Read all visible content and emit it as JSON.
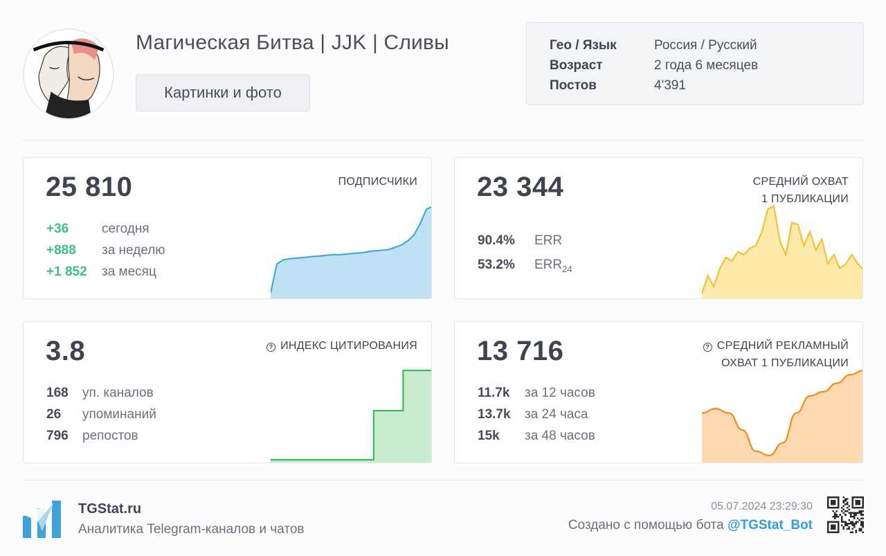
{
  "channel": {
    "title": "Магическая Битва | JJK | Сливы",
    "category": "Картинки и фото"
  },
  "info": [
    {
      "key": "Гео / Язык",
      "value": "Россия / Русский"
    },
    {
      "key": "Возраст",
      "value": "2 года 6 месяцев"
    },
    {
      "key": "Постов",
      "value": "4'391"
    }
  ],
  "cards": {
    "subscribers": {
      "value": "25 810",
      "label": "ПОДПИСЧИКИ",
      "stats": [
        {
          "num": "+36",
          "text": "сегодня"
        },
        {
          "num": "+888",
          "text": "за неделю"
        },
        {
          "num": "+1 852",
          "text": "за месяц"
        }
      ]
    },
    "reach": {
      "value": "23 344",
      "label_line1": "СРЕДНИЙ ОХВАТ",
      "label_line2": "1 ПУБЛИКАЦИИ",
      "stats": [
        {
          "num": "90.4%",
          "text": "ERR",
          "sub": ""
        },
        {
          "num": "53.2%",
          "text": "ERR",
          "sub": "24"
        }
      ]
    },
    "citation": {
      "value": "3.8",
      "label": "ИНДЕКС ЦИТИРОВАНИЯ",
      "stats": [
        {
          "num": "168",
          "text": "уп. каналов"
        },
        {
          "num": "26",
          "text": "упоминаний"
        },
        {
          "num": "796",
          "text": "репостов"
        }
      ]
    },
    "ad_reach": {
      "value": "13 716",
      "label_line1": "СРЕДНИЙ РЕКЛАМНЫЙ",
      "label_line2": "ОХВАТ 1 ПУБЛИКАЦИИ",
      "stats": [
        {
          "num": "11.7k",
          "text": "за 12 часов"
        },
        {
          "num": "13.7k",
          "text": "за 24 часа"
        },
        {
          "num": "15k",
          "text": "за 48 часов"
        }
      ]
    }
  },
  "sparklines": {
    "subscribers": {
      "color": "#45a8d8",
      "fill": "#bfe2f4",
      "values": [
        0.05,
        0.55,
        0.62,
        0.64,
        0.65,
        0.66,
        0.67,
        0.68,
        0.69,
        0.7,
        0.71,
        0.71,
        0.72,
        0.73,
        0.74,
        0.75,
        0.77,
        0.78,
        0.79,
        0.8,
        0.84,
        0.88,
        0.95,
        1.05,
        1.25,
        1.5,
        1.55
      ]
    },
    "reach": {
      "color": "#f2c230",
      "fill": "#fde9a9",
      "values": [
        0.02,
        0.22,
        0.1,
        0.3,
        0.42,
        0.38,
        0.48,
        0.45,
        0.52,
        0.55,
        0.7,
        0.95,
        0.98,
        0.6,
        0.45,
        0.8,
        0.78,
        0.55,
        0.7,
        0.5,
        0.62,
        0.35,
        0.45,
        0.3,
        0.35,
        0.45,
        0.35,
        0.28
      ]
    },
    "citation": {
      "color": "#3fb85a",
      "fill": "#c9ecd1",
      "values": [
        0.0,
        0.0,
        0.0,
        0.0,
        0.0,
        0.0,
        0.0,
        0.0,
        0.0,
        0.0,
        0.0,
        0.0,
        0.0,
        0.0,
        0.55,
        0.55,
        0.55,
        0.55,
        1.0,
        1.0,
        1.0,
        1.0,
        1.0
      ]
    },
    "ad_reach": {
      "color": "#f08c1c",
      "fill": "#fdd8b0",
      "values": [
        0.55,
        0.6,
        0.55,
        0.35,
        0.1,
        0.05,
        0.2,
        0.55,
        0.75,
        0.8,
        0.9,
        1.0,
        1.05
      ]
    }
  },
  "footer": {
    "brand": "TGStat.ru",
    "tagline": "Аналитика Telegram-каналов и чатов",
    "timestamp": "05.07.2024 23:29:30",
    "created_prefix": "Создано с помощью бота ",
    "bot": "@TGStat_Bot"
  },
  "colors": {
    "positive": "#3dbf8c",
    "link": "#2e9ee0",
    "logo": "#3da1dc"
  },
  "icons": {
    "help": "question-circle-icon",
    "logo": "tgstat-logo-icon",
    "qr": "qr-code-icon"
  }
}
